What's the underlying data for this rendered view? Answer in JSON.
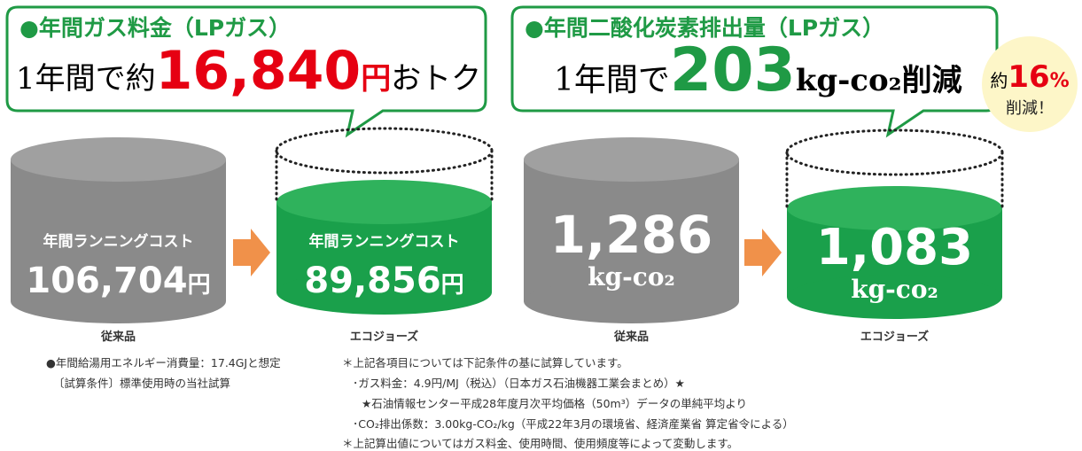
{
  "panels": [
    {
      "callout": {
        "heading": "●年間ガス料金（LPガス）",
        "prefix": "1年間で約",
        "amount": "16,840",
        "unit": "円",
        "suffix": "おトク"
      },
      "before": {
        "label": "年間ランニングコスト",
        "value": "106,704",
        "unit": "円",
        "caption": "従来品"
      },
      "after": {
        "label": "年間ランニングコスト",
        "value": "89,856",
        "unit": "円",
        "caption": "エコジョーズ"
      }
    },
    {
      "callout": {
        "heading": "●年間二酸化炭素排出量（LPガス）",
        "prefix": "1年間で",
        "amount": "203",
        "unit": "kg-co₂削減"
      },
      "before": {
        "value": "1,286",
        "unit": "kg-co₂",
        "caption": "従来品"
      },
      "after": {
        "value": "1,083",
        "unit": "kg-co₂",
        "caption": "エコジョーズ"
      }
    }
  ],
  "badge": {
    "prefix": "約",
    "percent": "16",
    "unit": "%",
    "suffix": "削減！"
  },
  "notes_left": [
    "●年間給湯用エネルギー消費量：17.4GJと想定",
    "〔試算条件〕標準使用時の当社試算"
  ],
  "notes_right": [
    "＊上記各項目については下記条件の基に試算しています。",
    "･ガス料金：4.9円/MJ（税込）（日本ガス石油機器工業会まとめ）★",
    "★石油情報センター平成28年度月次平均価格（50m³）データの単純平均より",
    "･CO₂排出係数：3.00kg-CO₂/kg（平成22年3月の環境省、経済産業省 算定省令による）",
    "＊上記算出値についてはガス料金、使用時間、使用頻度等によって変動します。"
  ]
}
